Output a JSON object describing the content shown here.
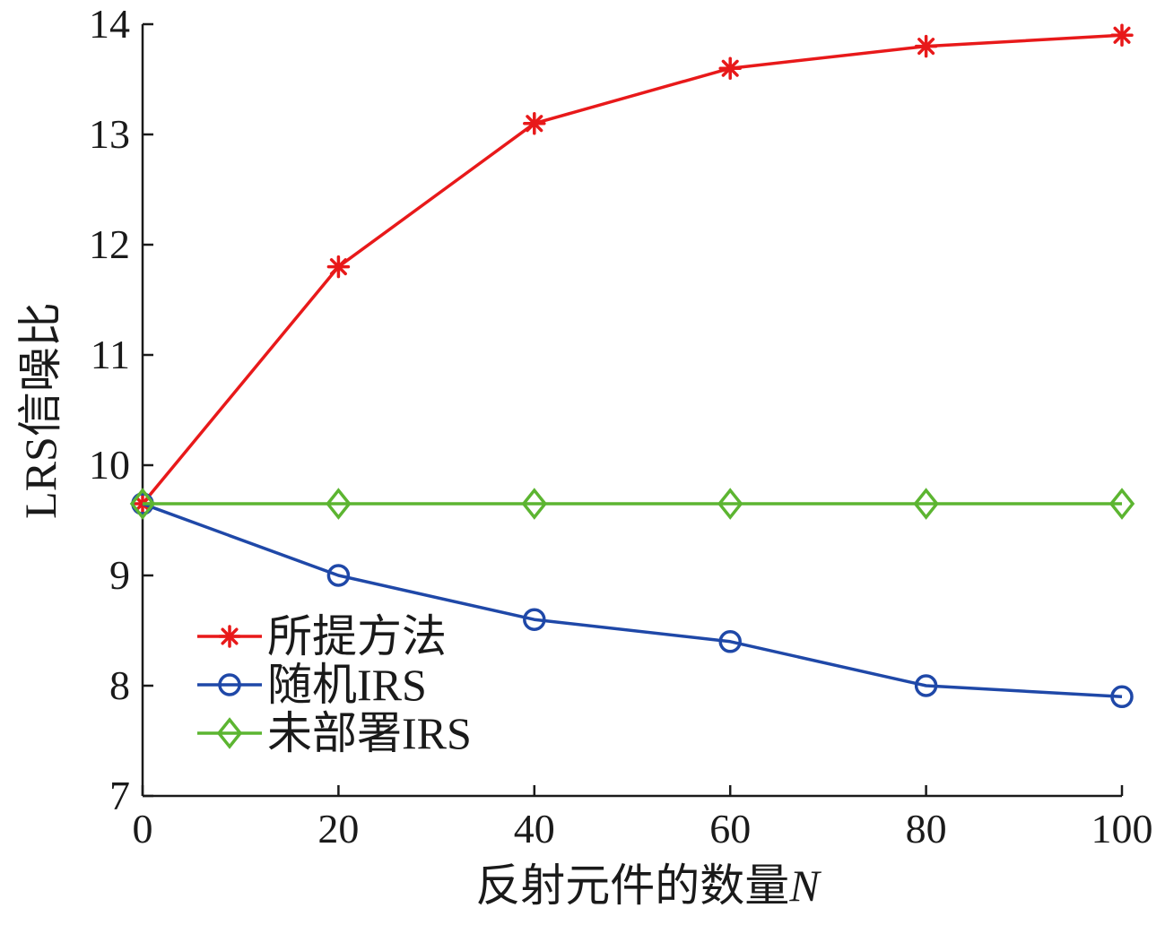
{
  "chart_data": {
    "type": "line",
    "title": "",
    "xlabel_main": "反射元件的数量",
    "xlabel_var": "N",
    "ylabel": "LRS信噪比",
    "xlim": [
      0,
      100
    ],
    "ylim": [
      7,
      14
    ],
    "x_ticks": [
      "0",
      "20",
      "40",
      "60",
      "80",
      "100"
    ],
    "y_ticks": [
      "7",
      "8",
      "9",
      "10",
      "11",
      "12",
      "13",
      "14"
    ],
    "grid": false,
    "legend_position": "bottom-left",
    "x": [
      0,
      20,
      40,
      60,
      80,
      100
    ],
    "series": [
      {
        "name": "所提方法",
        "values": [
          9.65,
          11.8,
          13.1,
          13.6,
          13.8,
          13.9
        ],
        "color": "#e8191a",
        "marker": "asterisk"
      },
      {
        "name": "随机IRS",
        "values": [
          9.65,
          9.0,
          8.6,
          8.4,
          8.0,
          7.9
        ],
        "color": "#1f48a8",
        "marker": "circle"
      },
      {
        "name": "未部署IRS",
        "values": [
          9.65,
          9.65,
          9.65,
          9.65,
          9.65,
          9.65
        ],
        "color": "#5cb531",
        "marker": "diamond"
      }
    ]
  }
}
